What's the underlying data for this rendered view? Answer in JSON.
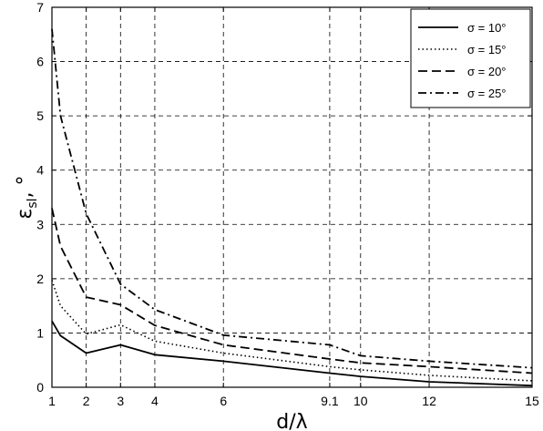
{
  "chart_data": {
    "type": "line",
    "title": "",
    "xlabel": "d/λ",
    "ylabel_main": "ε",
    "ylabel_sub": "sl",
    "ylabel_suffix": ", °",
    "xlim": [
      1,
      15
    ],
    "ylim": [
      0,
      7
    ],
    "xticks": [
      1,
      2,
      3,
      4,
      6,
      9.1,
      10,
      12,
      15
    ],
    "xtick_labels": [
      "1",
      "2",
      "3",
      "4",
      "6",
      "9.1",
      "10",
      "12",
      "15"
    ],
    "yticks": [
      0,
      1,
      2,
      3,
      4,
      5,
      6,
      7
    ],
    "ytick_labels": [
      "0",
      "1",
      "2",
      "3",
      "4",
      "5",
      "6",
      "7"
    ],
    "grid": true,
    "legend_position": "top-right",
    "x": [
      1,
      1.25,
      2,
      3,
      4,
      6,
      9.1,
      10,
      12,
      15
    ],
    "series": [
      {
        "name": "σ = 10°",
        "style": "solid",
        "values": [
          1.22,
          0.95,
          0.63,
          0.78,
          0.6,
          0.48,
          0.26,
          0.2,
          0.1,
          0.03
        ]
      },
      {
        "name": "σ = 15°",
        "style": "dotted",
        "values": [
          1.97,
          1.5,
          0.98,
          1.15,
          0.85,
          0.63,
          0.38,
          0.32,
          0.22,
          0.12
        ]
      },
      {
        "name": "σ = 20°",
        "style": "dashed",
        "values": [
          3.3,
          2.6,
          1.66,
          1.52,
          1.14,
          0.78,
          0.52,
          0.45,
          0.38,
          0.26
        ]
      },
      {
        "name": "σ = 25°",
        "style": "dashdot",
        "values": [
          6.6,
          5.0,
          3.2,
          1.9,
          1.43,
          0.96,
          0.78,
          0.58,
          0.48,
          0.36
        ]
      }
    ]
  }
}
